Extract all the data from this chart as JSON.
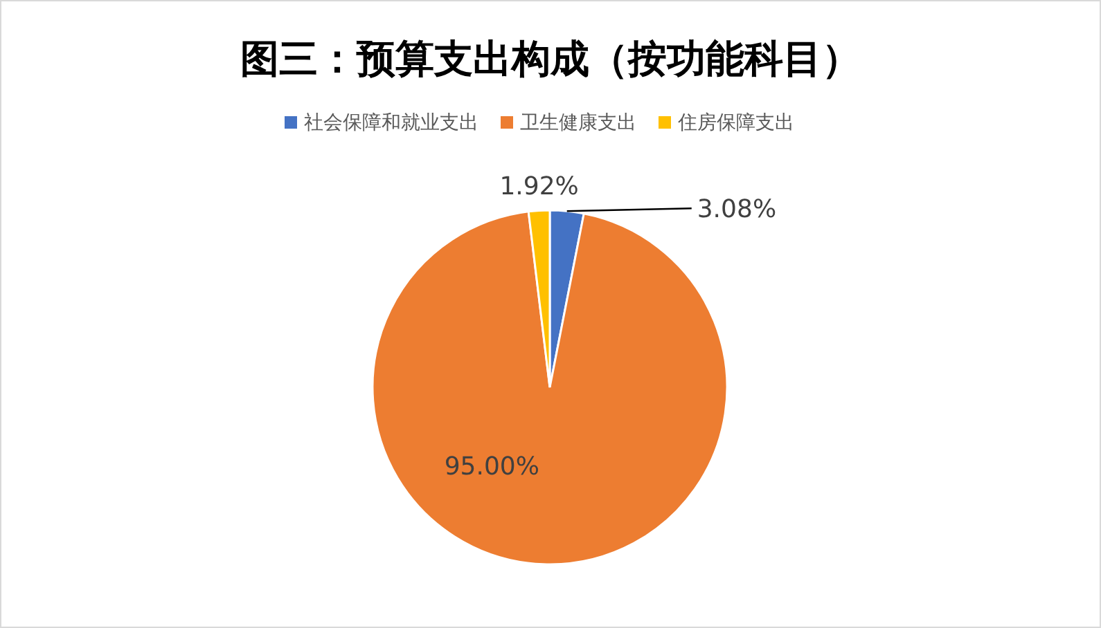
{
  "chart_data": {
    "type": "pie",
    "title": "图三：预算支出构成（按功能科目）",
    "categories": [
      "社会保障和就业支出",
      "卫生健康支出",
      "住房保障支出"
    ],
    "values": [
      3.08,
      95.0,
      1.92
    ],
    "colors": [
      "#4472c4",
      "#ed7d31",
      "#ffc000"
    ],
    "value_labels": [
      "3.08%",
      "95.00%",
      "1.92%"
    ],
    "legend": "top"
  }
}
